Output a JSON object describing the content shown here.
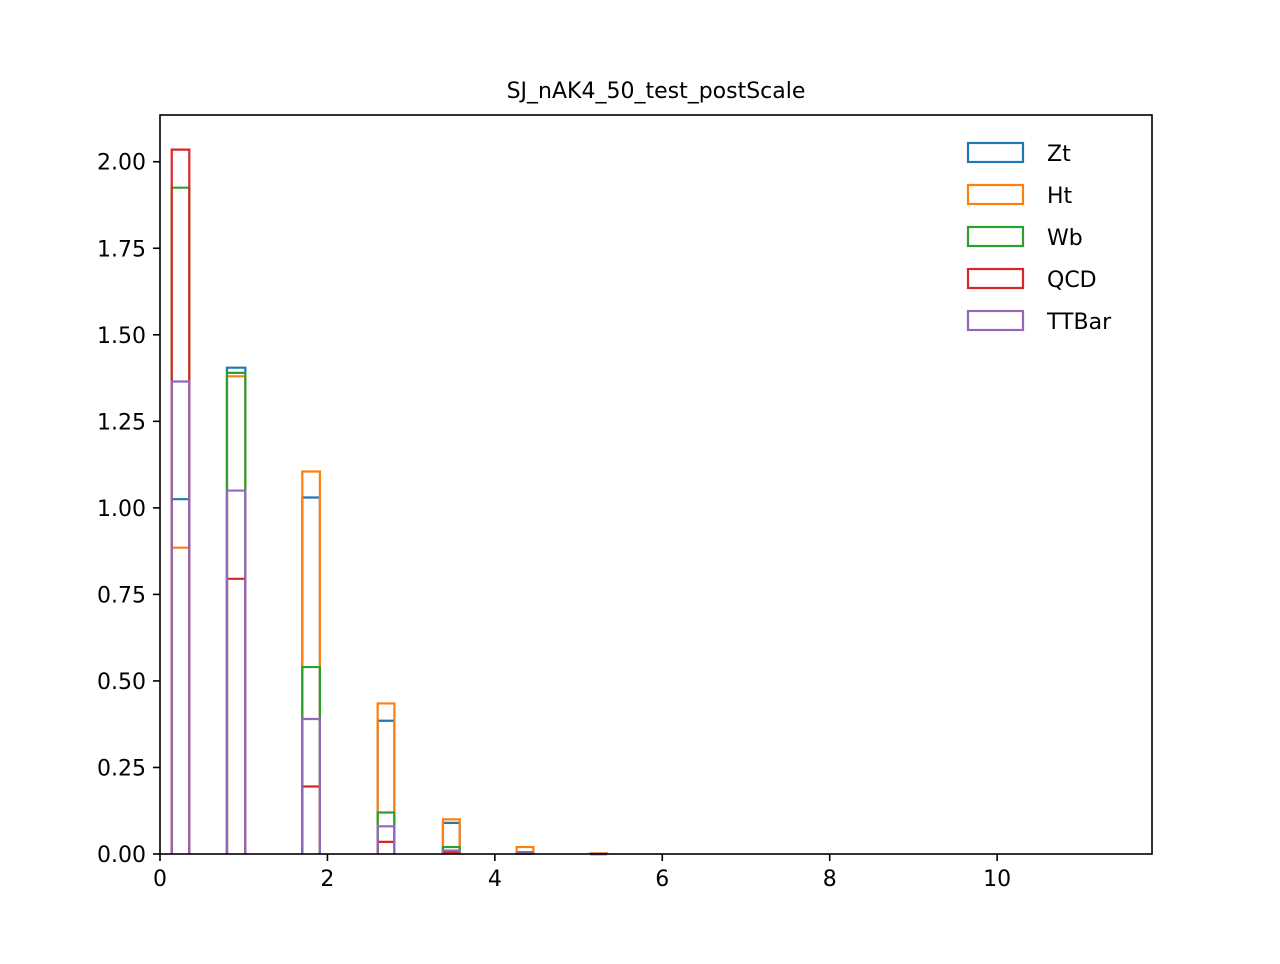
{
  "chart_data": {
    "type": "histogram-step",
    "title": "SJ_nAK4_50_test_postScale",
    "xlabel": "",
    "ylabel": "",
    "xlim": [
      0,
      11.85
    ],
    "ylim": [
      0,
      2.135
    ],
    "xticks": [
      0,
      2,
      4,
      6,
      8,
      10
    ],
    "xtick_labels": [
      "0",
      "2",
      "4",
      "6",
      "8",
      "10"
    ],
    "yticks": [
      0,
      0.25,
      0.5,
      0.75,
      1.0,
      1.25,
      1.5,
      1.75,
      2.0
    ],
    "ytick_labels": [
      "0.00",
      "0.25",
      "0.50",
      "0.75",
      "1.00",
      "1.25",
      "1.50",
      "1.75",
      "2.00"
    ],
    "grid": false,
    "legend_position": "top-right",
    "bins": [
      [
        0.14,
        0.35
      ],
      [
        0.8,
        1.02
      ],
      [
        1.7,
        1.91
      ],
      [
        2.6,
        2.8
      ],
      [
        3.38,
        3.58
      ],
      [
        4.26,
        4.46
      ],
      [
        5.14,
        5.34
      ]
    ],
    "series": [
      {
        "name": "Zt",
        "color": "#1f77b4",
        "values": [
          1.025,
          1.405,
          1.03,
          0.385,
          0.09,
          0.005,
          0.0
        ]
      },
      {
        "name": "Ht",
        "color": "#ff7f0e",
        "values": [
          0.885,
          1.38,
          1.105,
          0.435,
          0.1,
          0.02,
          0.002
        ]
      },
      {
        "name": "Wb",
        "color": "#2ca02c",
        "values": [
          1.925,
          1.39,
          0.54,
          0.12,
          0.02,
          0.003,
          0.0
        ]
      },
      {
        "name": "QCD",
        "color": "#d62728",
        "values": [
          2.035,
          0.795,
          0.195,
          0.035,
          0.005,
          0.001,
          0.0
        ]
      },
      {
        "name": "TTBar",
        "color": "#9467bd",
        "values": [
          1.365,
          1.05,
          0.39,
          0.08,
          0.01,
          0.002,
          0.0
        ]
      }
    ]
  }
}
